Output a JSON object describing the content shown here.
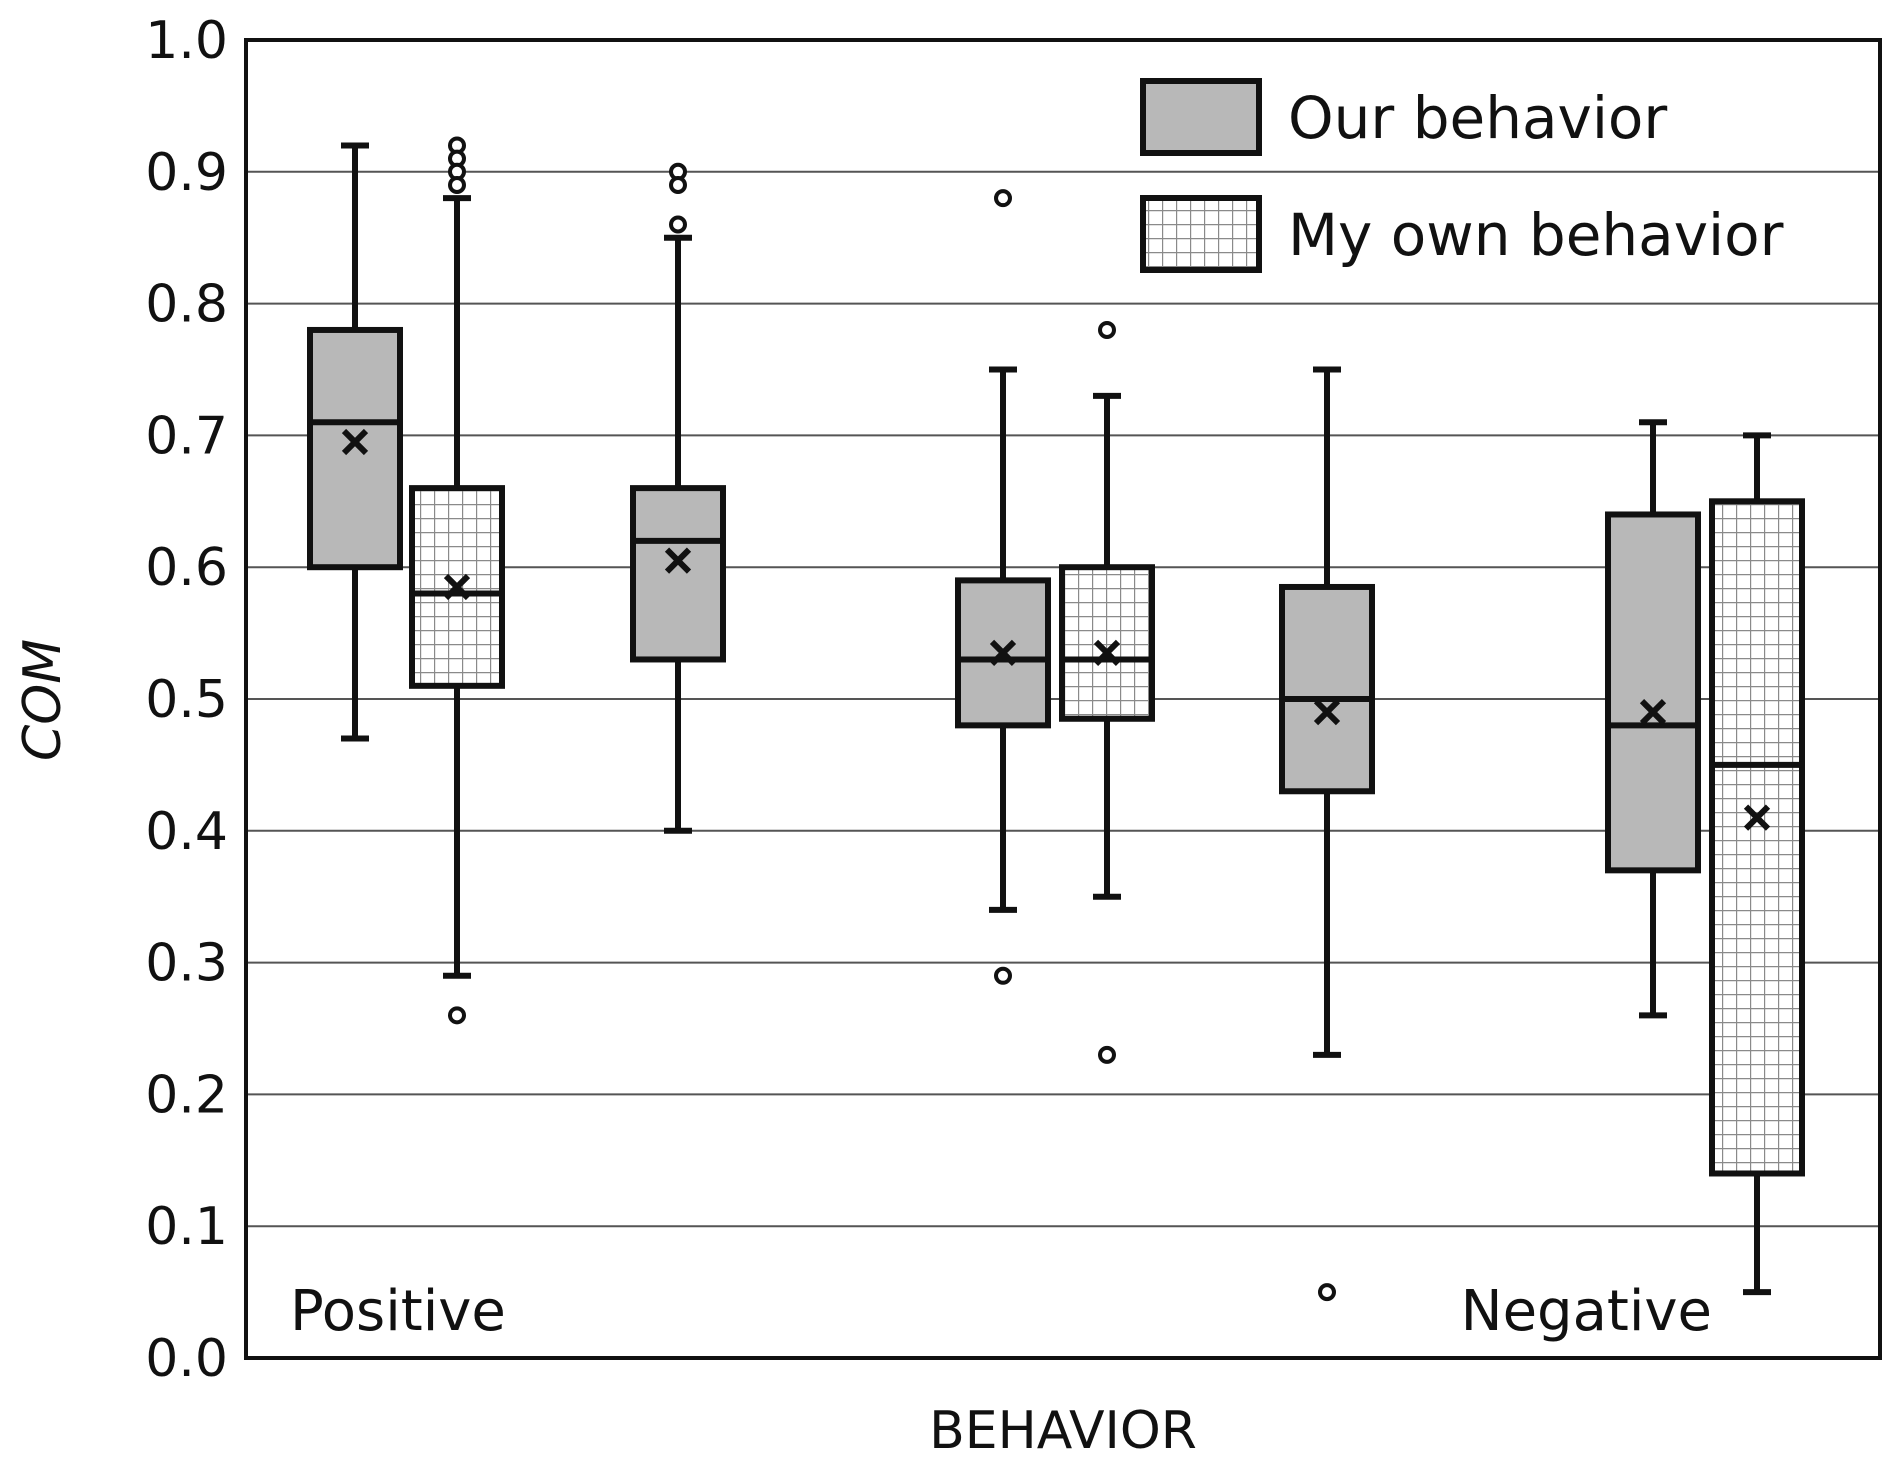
{
  "chart_data": {
    "type": "boxplot",
    "title": "",
    "xlabel": "BEHAVIOR",
    "ylabel": "COM",
    "ylim": [
      0.0,
      1.0
    ],
    "yticks": [
      "0.0",
      "0.1",
      "0.2",
      "0.3",
      "0.4",
      "0.5",
      "0.6",
      "0.7",
      "0.8",
      "0.9",
      "1.0"
    ],
    "grid": true,
    "legend_position": "top-right",
    "annotations": {
      "left": "Positive",
      "right": "Negative"
    },
    "series": [
      {
        "name": "Our behavior",
        "fill": "solid-gray",
        "color": "#b8b8b8"
      },
      {
        "name": "My own behavior",
        "fill": "grid-hatch",
        "color": "#ffffff"
      }
    ],
    "boxes": [
      {
        "series": 0,
        "whisker_low": 0.47,
        "q1": 0.6,
        "median": 0.71,
        "q3": 0.78,
        "whisker_high": 0.92,
        "mean": 0.695,
        "outliers": []
      },
      {
        "series": 1,
        "whisker_low": 0.29,
        "q1": 0.51,
        "median": 0.58,
        "q3": 0.66,
        "whisker_high": 0.88,
        "mean": 0.585,
        "outliers": [
          0.92,
          0.91,
          0.9,
          0.89,
          0.26
        ]
      },
      {
        "series": 0,
        "whisker_low": 0.4,
        "q1": 0.53,
        "median": 0.62,
        "q3": 0.66,
        "whisker_high": 0.85,
        "mean": 0.605,
        "outliers": [
          0.9,
          0.89,
          0.86
        ]
      },
      {
        "series": 0,
        "whisker_low": 0.34,
        "q1": 0.48,
        "median": 0.53,
        "q3": 0.59,
        "whisker_high": 0.75,
        "mean": 0.535,
        "outliers": [
          0.88,
          0.29
        ]
      },
      {
        "series": 1,
        "whisker_low": 0.35,
        "q1": 0.485,
        "median": 0.53,
        "q3": 0.6,
        "whisker_high": 0.73,
        "mean": 0.535,
        "outliers": [
          0.78,
          0.23
        ]
      },
      {
        "series": 0,
        "whisker_low": 0.23,
        "q1": 0.43,
        "median": 0.5,
        "q3": 0.585,
        "whisker_high": 0.75,
        "mean": 0.49,
        "outliers": [
          0.05
        ]
      },
      {
        "series": 0,
        "whisker_low": 0.26,
        "q1": 0.37,
        "median": 0.48,
        "q3": 0.64,
        "whisker_high": 0.71,
        "mean": 0.49,
        "outliers": []
      },
      {
        "series": 1,
        "whisker_low": 0.05,
        "q1": 0.14,
        "median": 0.45,
        "q3": 0.65,
        "whisker_high": 0.7,
        "mean": 0.41,
        "outliers": []
      }
    ]
  }
}
